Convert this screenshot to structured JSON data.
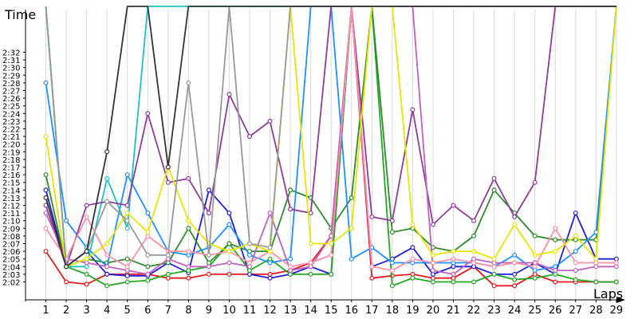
{
  "chart_data": {
    "type": "line",
    "xlabel": "Laps",
    "ylabel": "Time",
    "x": [
      1,
      2,
      3,
      4,
      5,
      6,
      7,
      8,
      9,
      10,
      11,
      12,
      13,
      14,
      15,
      16,
      17,
      18,
      19,
      20,
      21,
      22,
      23,
      24,
      25,
      26,
      27,
      28,
      29
    ],
    "y_ticks": [
      "2:02",
      "2:03",
      "2:04",
      "2:05",
      "2:06",
      "2:07",
      "2:08",
      "2:09",
      "2:10",
      "2:11",
      "2:12",
      "2:13",
      "2:14",
      "2:15",
      "2:16",
      "2:17",
      "2:18",
      "2:19",
      "2:20",
      "2:21",
      "2:22",
      "2:23",
      "2:24",
      "2:25",
      "2:26",
      "2:27",
      "2:28",
      "2:29",
      "2:30",
      "2:31",
      "2:32"
    ],
    "ylim_seconds": [
      120.5,
      153
    ],
    "x_grid": true,
    "y_grid": false,
    "series": [
      {
        "color": "#e41a1c",
        "values": [
          126,
          122,
          121.7,
          123,
          123,
          123,
          122.5,
          122.5,
          123,
          123,
          123,
          123,
          123.5,
          124.5,
          128,
          999,
          122.5,
          122.8,
          123,
          122.5,
          122.5,
          124,
          121.5,
          121.5,
          123,
          122,
          122,
          122,
          122
        ]
      },
      {
        "color": "#1f1fd6",
        "values": [
          134,
          124,
          126,
          123,
          122.8,
          122.8,
          124.5,
          123.2,
          134,
          131,
          123,
          122.5,
          123,
          124,
          123,
          999,
          124,
          125,
          126.5,
          123,
          124,
          124,
          123,
          123,
          124.5,
          123,
          131,
          125,
          125
        ]
      },
      {
        "color": "#22a722",
        "values": [
          999,
          124,
          123,
          121.5,
          122,
          122.2,
          123,
          123.5,
          124,
          127,
          123.5,
          125,
          123,
          123,
          123,
          999,
          999,
          121.5,
          122.5,
          122,
          122,
          122,
          123,
          122.3,
          122.5,
          123,
          122.3,
          122,
          122
        ]
      },
      {
        "color": "#2e8b2e",
        "values": [
          136,
          124,
          125,
          124.5,
          125,
          124,
          124.5,
          129,
          124.5,
          127,
          126,
          126,
          134,
          133,
          129,
          133,
          999,
          128.5,
          129,
          126.5,
          126,
          128,
          134,
          131,
          128,
          127.5,
          127.5,
          127.5,
          999
        ]
      },
      {
        "color": "#1e90ff",
        "values": [
          148,
          130,
          126.5,
          124,
          136,
          131,
          126,
          125.5,
          126.5,
          129.5,
          125.5,
          124.5,
          125,
          999,
          999,
          125,
          126.5,
          124.5,
          124.5,
          124.5,
          124.5,
          124.5,
          124,
          125.5,
          123.5,
          124,
          126,
          128.5,
          999
        ]
      },
      {
        "color": "#20c0c0",
        "values": [
          999,
          124,
          124,
          135.5,
          129,
          999,
          999,
          999,
          999,
          999,
          999,
          999,
          999,
          999,
          999,
          999,
          999,
          999,
          999,
          999,
          999,
          999,
          999,
          999,
          999,
          999,
          999,
          999,
          999
        ]
      },
      {
        "color": "#8e3b9b",
        "values": [
          132,
          124,
          132,
          132.5,
          132,
          144,
          135,
          135.5,
          131,
          146.5,
          141,
          143,
          131.5,
          131,
          999,
          999,
          130.5,
          130,
          144.5,
          129.5,
          132,
          130,
          135.5,
          130.5,
          135,
          999,
          999,
          999,
          999
        ]
      },
      {
        "color": "#c060c0",
        "values": [
          131,
          125,
          124.5,
          124,
          123.5,
          123,
          125,
          124,
          124,
          124.5,
          124,
          131,
          123.5,
          124,
          128,
          999,
          999,
          999,
          999,
          123.5,
          123,
          125,
          124.5,
          124.5,
          124.5,
          123.5,
          123.5,
          124,
          124
        ]
      },
      {
        "color": "#ff8fa3",
        "values": [
          129,
          125,
          130.5,
          125.5,
          124,
          128,
          126,
          126,
          125.5,
          126,
          124.5,
          126,
          124,
          124.5,
          125.5,
          999,
          124,
          123.5,
          125,
          124.5,
          125,
          124.5,
          124,
          124.5,
          124,
          129,
          124.5,
          124.5,
          124.5
        ]
      },
      {
        "color": "#e6e600",
        "values": [
          141,
          124,
          125,
          127,
          131,
          128.5,
          137,
          130,
          127,
          126,
          127,
          126,
          999,
          127,
          127,
          129,
          999,
          999,
          129.5,
          125.5,
          126,
          126,
          125,
          129.5,
          125.5,
          126,
          128,
          125,
          999
        ]
      },
      {
        "color": "#999999",
        "values": [
          999,
          124,
          126,
          132.5,
          130,
          125.5,
          125.5,
          148,
          125.5,
          999,
          127,
          126.5,
          999,
          999,
          999,
          999,
          999,
          999,
          999,
          999,
          999,
          999,
          999,
          999,
          999,
          999,
          999,
          999,
          999
        ]
      },
      {
        "color": "#333333",
        "values": [
          133,
          124,
          126,
          139,
          999,
          999,
          137,
          999,
          999,
          999,
          999,
          999,
          999,
          999,
          999,
          999,
          999,
          999,
          999,
          999,
          999,
          999,
          999,
          999,
          999,
          999,
          999,
          999,
          999
        ]
      }
    ]
  }
}
